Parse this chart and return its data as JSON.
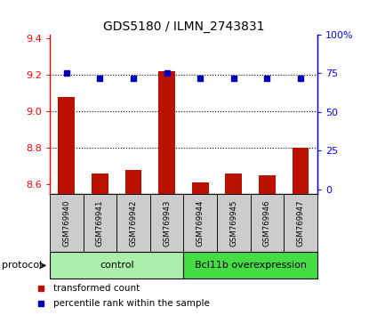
{
  "title": "GDS5180 / ILMN_2743831",
  "samples": [
    "GSM769940",
    "GSM769941",
    "GSM769942",
    "GSM769943",
    "GSM769944",
    "GSM769945",
    "GSM769946",
    "GSM769947"
  ],
  "red_values": [
    9.08,
    8.66,
    8.68,
    9.22,
    8.61,
    8.66,
    8.65,
    8.8
  ],
  "blue_values": [
    75,
    72,
    72,
    75,
    72,
    72,
    72,
    72
  ],
  "ylim_left": [
    8.55,
    9.42
  ],
  "ylim_right": [
    -3,
    100
  ],
  "yticks_left": [
    8.6,
    8.8,
    9.0,
    9.2,
    9.4
  ],
  "yticks_right": [
    0,
    25,
    50,
    75,
    100
  ],
  "ytick_right_labels": [
    "0",
    "25",
    "50",
    "75",
    "100%"
  ],
  "groups": [
    {
      "label": "control",
      "start": 0,
      "end": 3,
      "color": "#aaf0aa"
    },
    {
      "label": "Bcl11b overexpression",
      "start": 4,
      "end": 7,
      "color": "#44dd44"
    }
  ],
  "protocol_label": "protocol",
  "bar_color": "#bb1100",
  "dot_color": "#0000bb",
  "legend_items": [
    {
      "label": "transformed count",
      "color": "#bb1100"
    },
    {
      "label": "percentile rank within the sample",
      "color": "#0000bb"
    }
  ],
  "sample_bg_color": "#cccccc",
  "grid_yticks": [
    8.8,
    9.0,
    9.2
  ],
  "bar_width": 0.5
}
